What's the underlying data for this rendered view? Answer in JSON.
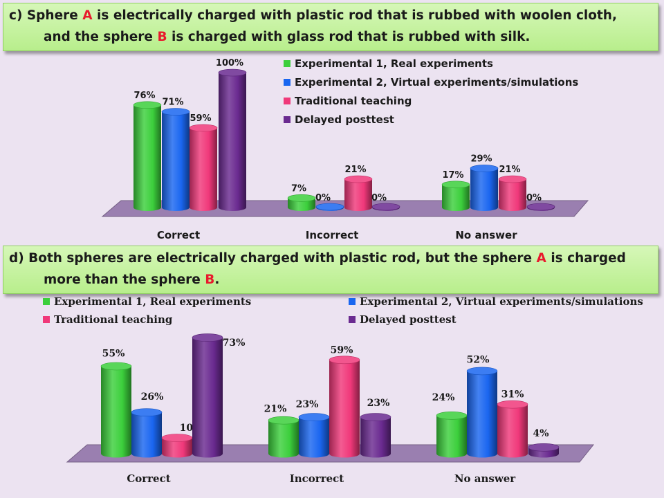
{
  "question_c": {
    "line1": [
      "c) Sphere ",
      "A",
      " is electrically charged with plastic rod that is rubbed with woolen cloth,"
    ],
    "line2": [
      "and the sphere ",
      "B",
      " is charged with glass rod that is rubbed with silk."
    ]
  },
  "question_d": {
    "line1": [
      "d) Both spheres are electrically charged with plastic rod, but the sphere ",
      "A",
      " is charged"
    ],
    "line2": [
      "more than the sphere ",
      "B",
      "."
    ]
  },
  "colors": {
    "series": [
      "#3ccf3c",
      "#1a66f0",
      "#f0387a",
      "#6a2a90"
    ],
    "floor": "#9a7fb0",
    "highlight": "#e8192c"
  },
  "chart_data": [
    {
      "type": "bar",
      "style": "3d-cylinder",
      "categories": [
        "Correct",
        "Incorrect",
        "No answer"
      ],
      "series": [
        {
          "name": "Experimental 1, Real experiments",
          "values": [
            76,
            7,
            17
          ]
        },
        {
          "name": "Experimental 2, Virtual experiments/simulations",
          "values": [
            71,
            0,
            29
          ]
        },
        {
          "name": "Traditional teaching",
          "values": [
            59,
            21,
            21
          ]
        },
        {
          "name": "Delayed posttest",
          "values": [
            100,
            0,
            0
          ]
        }
      ],
      "data_labels": [
        [
          "76%",
          "7%",
          "17%"
        ],
        [
          "71%",
          "0%",
          "29%"
        ],
        [
          "59%",
          "21%",
          "21%"
        ],
        [
          "100%",
          "0%",
          "0%"
        ]
      ],
      "ylim": [
        0,
        100
      ],
      "legend_position": "top-right",
      "grid": false
    },
    {
      "type": "bar",
      "style": "3d-cylinder",
      "categories": [
        "Correct",
        "Incorrect",
        "No answer"
      ],
      "series": [
        {
          "name": "Experimental 1, Real experiments",
          "values": [
            55,
            21,
            24
          ]
        },
        {
          "name": "Experimental 2, Virtual experiments/simulations",
          "values": [
            26,
            23,
            52
          ]
        },
        {
          "name": "Traditional teaching",
          "values": [
            10,
            59,
            31
          ]
        },
        {
          "name": "Delayed posttest",
          "values": [
            73,
            23,
            4
          ]
        }
      ],
      "data_labels": [
        [
          "55%",
          "21%",
          "24%"
        ],
        [
          "26%",
          "23%",
          "52%"
        ],
        [
          "10%",
          "59%",
          "31%"
        ],
        [
          "73%",
          "23%",
          "4%"
        ]
      ],
      "ylim": [
        0,
        100
      ],
      "legend_position": "top",
      "grid": false
    }
  ]
}
